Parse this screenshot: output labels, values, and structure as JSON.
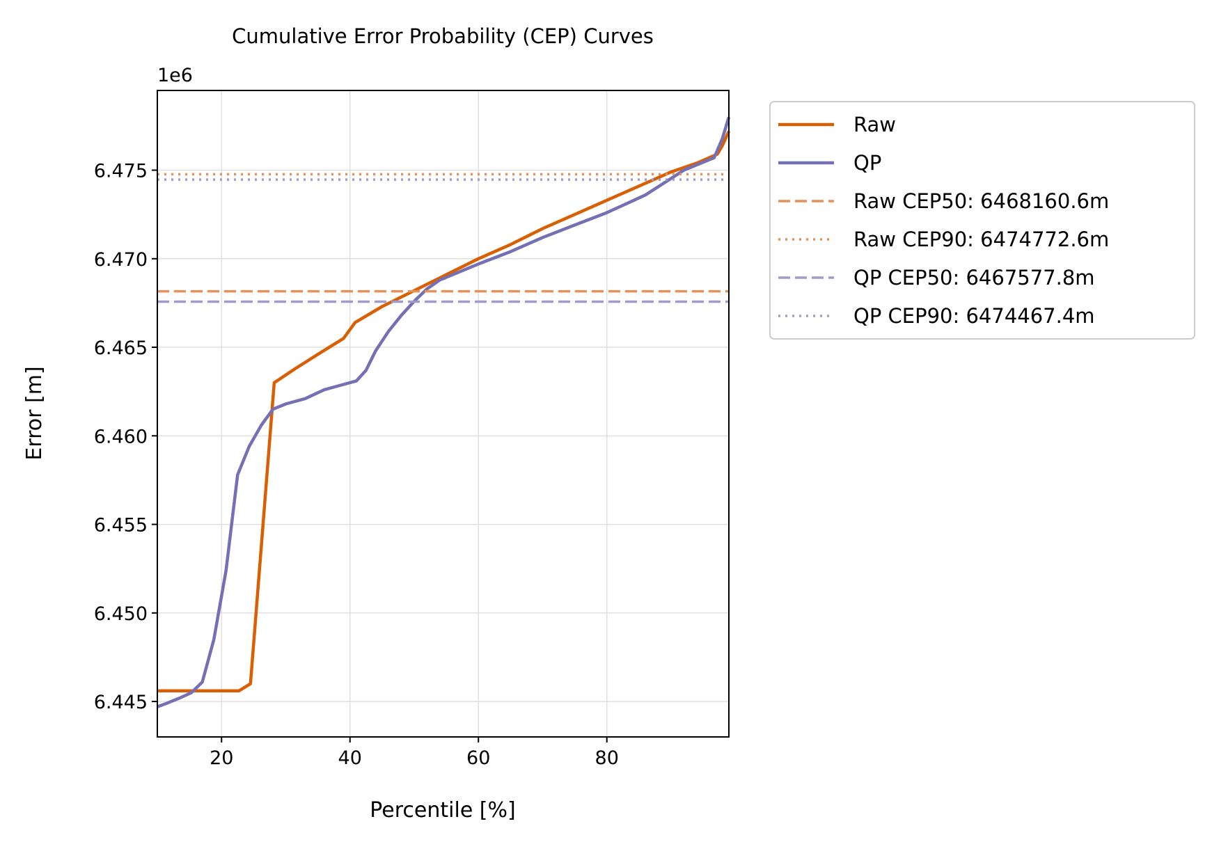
{
  "chart_data": {
    "type": "line",
    "title": "Cumulative Error Probability (CEP) Curves",
    "xlabel": "Percentile [%]",
    "ylabel": "Error [m]",
    "offset_label": "1e6",
    "xlim": [
      10,
      99
    ],
    "ylim": [
      6443000,
      6479500
    ],
    "x_ticks": [
      20,
      40,
      60,
      80
    ],
    "x_tick_labels": [
      "20",
      "40",
      "60",
      "80"
    ],
    "y_ticks": [
      6445000,
      6450000,
      6455000,
      6460000,
      6465000,
      6470000,
      6475000
    ],
    "y_tick_labels": [
      "6.445",
      "6.450",
      "6.455",
      "6.460",
      "6.465",
      "6.470",
      "6.475"
    ],
    "grid": true,
    "legend_position": "outside-right",
    "series": [
      {
        "name": "Raw",
        "color": "#d95f02",
        "style": "solid",
        "points": [
          [
            10,
            6445600
          ],
          [
            15,
            6445600
          ],
          [
            20,
            6445600
          ],
          [
            22.7,
            6445600
          ],
          [
            24.5,
            6446000
          ],
          [
            28.2,
            6463000
          ],
          [
            31.5,
            6463800
          ],
          [
            35,
            6464600
          ],
          [
            39,
            6465500
          ],
          [
            40.8,
            6466400
          ],
          [
            45,
            6467300
          ],
          [
            50,
            6468200
          ],
          [
            55,
            6469100
          ],
          [
            60,
            6470000
          ],
          [
            65,
            6470800
          ],
          [
            70,
            6471700
          ],
          [
            75,
            6472500
          ],
          [
            80,
            6473300
          ],
          [
            85,
            6474100
          ],
          [
            90,
            6474900
          ],
          [
            94,
            6475400
          ],
          [
            97.2,
            6475900
          ],
          [
            98,
            6476400
          ],
          [
            99,
            6477200
          ]
        ]
      },
      {
        "name": "QP",
        "color": "#7570b3",
        "style": "solid",
        "points": [
          [
            10,
            6444700
          ],
          [
            11.5,
            6444900
          ],
          [
            13.5,
            6445200
          ],
          [
            15.3,
            6445500
          ],
          [
            17,
            6446100
          ],
          [
            18.8,
            6448500
          ],
          [
            20.7,
            6452400
          ],
          [
            22.5,
            6457800
          ],
          [
            24.3,
            6459400
          ],
          [
            26.2,
            6460600
          ],
          [
            28,
            6461500
          ],
          [
            30,
            6461800
          ],
          [
            33,
            6462100
          ],
          [
            36,
            6462600
          ],
          [
            38,
            6462800
          ],
          [
            41,
            6463100
          ],
          [
            42.5,
            6463700
          ],
          [
            44,
            6464800
          ],
          [
            46,
            6465900
          ],
          [
            48,
            6466800
          ],
          [
            50,
            6467600
          ],
          [
            52,
            6468300
          ],
          [
            54,
            6468800
          ],
          [
            56,
            6469100
          ],
          [
            60,
            6469700
          ],
          [
            65,
            6470400
          ],
          [
            70,
            6471200
          ],
          [
            75,
            6471900
          ],
          [
            80,
            6472600
          ],
          [
            83,
            6473100
          ],
          [
            86,
            6473600
          ],
          [
            89,
            6474300
          ],
          [
            92,
            6475000
          ],
          [
            96.7,
            6475700
          ],
          [
            98,
            6476800
          ],
          [
            99,
            6478000
          ]
        ]
      },
      {
        "name": "Raw CEP50: 6468160.6m",
        "color": "#e6915a",
        "style": "dashed",
        "y": 6468160.6
      },
      {
        "name": "Raw CEP90: 6474772.6m",
        "color": "#e6915a",
        "style": "dotted",
        "y": 6474772.6
      },
      {
        "name": "QP CEP50: 6467577.8m",
        "color": "#a09bcc",
        "style": "dashed",
        "y": 6467577.8
      },
      {
        "name": "QP CEP90: 6474467.4m",
        "color": "#a09bcc",
        "style": "dotted",
        "y": 6474467.4
      }
    ]
  }
}
